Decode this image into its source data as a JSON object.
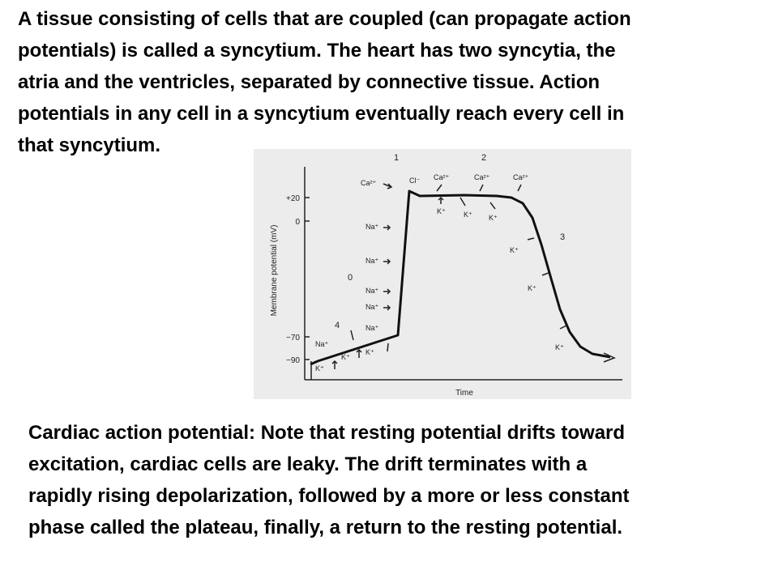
{
  "paragraphs": {
    "top": [
      "A tissue consisting of cells that are coupled (can propagate action",
      "potentials) is called a syncytium.  The heart has two syncytia, the",
      "atria and the ventricles, separated by connective tissue.  Action",
      "potentials in any cell in a syncytium eventually reach every cell in",
      "that syncytium."
    ],
    "bottom": [
      "Cardiac action potential:  Note that resting potential drifts toward",
      "excitation, cardiac cells are leaky.  The drift terminates with a",
      "rapidly rising depolarization, followed by a more or less constant",
      "phase called the plateau, finally, a return to the resting potential."
    ]
  },
  "figure": {
    "ylabel": "Membrane potential (mV)",
    "xlabel": "Time",
    "yticks": [
      "+20",
      "0",
      "−70",
      "−90"
    ],
    "phases": [
      "0",
      "1",
      "2",
      "3",
      "4"
    ],
    "ions": {
      "na": "Na⁺",
      "k": "K⁺",
      "ca": "Ca²⁺",
      "cl": "Cl⁻"
    },
    "colors": {
      "background": "#ececec",
      "ink": "#222222"
    }
  }
}
